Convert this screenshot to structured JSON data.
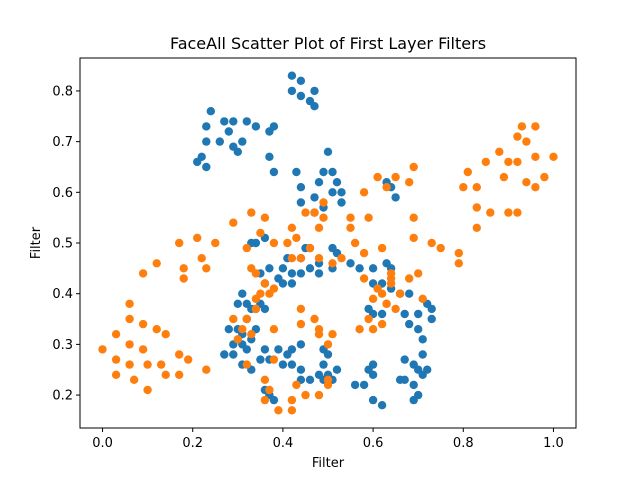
{
  "chart_data": {
    "type": "scatter",
    "title": "FaceAll Scatter Plot of First Layer Filters",
    "xlabel": "Filter",
    "ylabel": "Filter",
    "xlim": [
      -0.05,
      1.05
    ],
    "ylim": [
      0.135,
      0.865
    ],
    "xticks": [
      "0.0",
      "0.2",
      "0.4",
      "0.6",
      "0.8",
      "1.0"
    ],
    "yticks": [
      "0.2",
      "0.3",
      "0.4",
      "0.5",
      "0.6",
      "0.7",
      "0.8"
    ],
    "grid": false,
    "legend": "none",
    "series": [
      {
        "color": "#1f77b4",
        "points": [
          [
            0.42,
            0.83
          ],
          [
            0.44,
            0.82
          ],
          [
            0.47,
            0.8
          ],
          [
            0.42,
            0.8
          ],
          [
            0.44,
            0.79
          ],
          [
            0.46,
            0.78
          ],
          [
            0.47,
            0.77
          ],
          [
            0.24,
            0.76
          ],
          [
            0.27,
            0.74
          ],
          [
            0.29,
            0.74
          ],
          [
            0.32,
            0.74
          ],
          [
            0.34,
            0.73
          ],
          [
            0.23,
            0.73
          ],
          [
            0.38,
            0.73
          ],
          [
            0.37,
            0.72
          ],
          [
            0.28,
            0.72
          ],
          [
            0.23,
            0.7
          ],
          [
            0.26,
            0.7
          ],
          [
            0.31,
            0.7
          ],
          [
            0.29,
            0.69
          ],
          [
            0.3,
            0.68
          ],
          [
            0.5,
            0.68
          ],
          [
            0.21,
            0.66
          ],
          [
            0.22,
            0.67
          ],
          [
            0.23,
            0.65
          ],
          [
            0.37,
            0.67
          ],
          [
            0.38,
            0.64
          ],
          [
            0.43,
            0.64
          ],
          [
            0.49,
            0.64
          ],
          [
            0.51,
            0.64
          ],
          [
            0.52,
            0.62
          ],
          [
            0.48,
            0.62
          ],
          [
            0.51,
            0.6
          ],
          [
            0.53,
            0.6
          ],
          [
            0.44,
            0.61
          ],
          [
            0.47,
            0.59
          ],
          [
            0.44,
            0.58
          ],
          [
            0.53,
            0.58
          ],
          [
            0.49,
            0.57
          ],
          [
            0.47,
            0.56
          ],
          [
            0.63,
            0.62
          ],
          [
            0.64,
            0.61
          ],
          [
            0.65,
            0.59
          ],
          [
            0.33,
            0.5
          ],
          [
            0.34,
            0.5
          ],
          [
            0.36,
            0.51
          ],
          [
            0.45,
            0.49
          ],
          [
            0.46,
            0.49
          ],
          [
            0.51,
            0.49
          ],
          [
            0.52,
            0.48
          ],
          [
            0.44,
            0.47
          ],
          [
            0.41,
            0.47
          ],
          [
            0.48,
            0.46
          ],
          [
            0.46,
            0.45
          ],
          [
            0.51,
            0.45
          ],
          [
            0.55,
            0.46
          ],
          [
            0.57,
            0.45
          ],
          [
            0.6,
            0.45
          ],
          [
            0.63,
            0.46
          ],
          [
            0.64,
            0.45
          ],
          [
            0.37,
            0.45
          ],
          [
            0.35,
            0.44
          ],
          [
            0.4,
            0.45
          ],
          [
            0.42,
            0.44
          ],
          [
            0.44,
            0.44
          ],
          [
            0.48,
            0.44
          ],
          [
            0.39,
            0.43
          ],
          [
            0.36,
            0.42
          ],
          [
            0.4,
            0.42
          ],
          [
            0.42,
            0.42
          ],
          [
            0.6,
            0.42
          ],
          [
            0.62,
            0.42
          ],
          [
            0.64,
            0.41
          ],
          [
            0.66,
            0.4
          ],
          [
            0.68,
            0.4
          ],
          [
            0.72,
            0.38
          ],
          [
            0.73,
            0.37
          ],
          [
            0.67,
            0.36
          ],
          [
            0.7,
            0.36
          ],
          [
            0.73,
            0.35
          ],
          [
            0.62,
            0.36
          ],
          [
            0.59,
            0.37
          ],
          [
            0.6,
            0.36
          ],
          [
            0.31,
            0.4
          ],
          [
            0.3,
            0.38
          ],
          [
            0.32,
            0.38
          ],
          [
            0.33,
            0.37
          ],
          [
            0.34,
            0.37
          ],
          [
            0.35,
            0.38
          ],
          [
            0.36,
            0.37
          ],
          [
            0.32,
            0.35
          ],
          [
            0.3,
            0.33
          ],
          [
            0.28,
            0.33
          ],
          [
            0.34,
            0.33
          ],
          [
            0.31,
            0.32
          ],
          [
            0.33,
            0.31
          ],
          [
            0.31,
            0.3
          ],
          [
            0.32,
            0.29
          ],
          [
            0.29,
            0.3
          ],
          [
            0.36,
            0.29
          ],
          [
            0.39,
            0.29
          ],
          [
            0.42,
            0.29
          ],
          [
            0.44,
            0.3
          ],
          [
            0.41,
            0.28
          ],
          [
            0.4,
            0.26
          ],
          [
            0.37,
            0.27
          ],
          [
            0.35,
            0.27
          ],
          [
            0.29,
            0.28
          ],
          [
            0.27,
            0.28
          ],
          [
            0.31,
            0.26
          ],
          [
            0.33,
            0.25
          ],
          [
            0.42,
            0.26
          ],
          [
            0.44,
            0.25
          ],
          [
            0.49,
            0.29
          ],
          [
            0.5,
            0.28
          ],
          [
            0.49,
            0.26
          ],
          [
            0.52,
            0.25
          ],
          [
            0.5,
            0.24
          ],
          [
            0.48,
            0.24
          ],
          [
            0.44,
            0.23
          ],
          [
            0.46,
            0.23
          ],
          [
            0.49,
            0.23
          ],
          [
            0.51,
            0.23
          ],
          [
            0.36,
            0.21
          ],
          [
            0.37,
            0.2
          ],
          [
            0.38,
            0.19
          ],
          [
            0.56,
            0.22
          ],
          [
            0.58,
            0.22
          ],
          [
            0.59,
            0.25
          ],
          [
            0.6,
            0.26
          ],
          [
            0.6,
            0.24
          ],
          [
            0.6,
            0.19
          ],
          [
            0.62,
            0.18
          ],
          [
            0.66,
            0.23
          ],
          [
            0.67,
            0.27
          ],
          [
            0.69,
            0.26
          ],
          [
            0.7,
            0.25
          ],
          [
            0.71,
            0.28
          ],
          [
            0.71,
            0.24
          ],
          [
            0.71,
            0.31
          ],
          [
            0.7,
            0.33
          ],
          [
            0.68,
            0.34
          ],
          [
            0.67,
            0.23
          ],
          [
            0.69,
            0.22
          ],
          [
            0.69,
            0.19
          ],
          [
            0.7,
            0.2
          ],
          [
            0.72,
            0.25
          ]
        ]
      },
      {
        "color": "#ff7f0e",
        "points": [
          [
            0.0,
            0.29
          ],
          [
            0.03,
            0.32
          ],
          [
            0.03,
            0.27
          ],
          [
            0.03,
            0.24
          ],
          [
            0.06,
            0.3
          ],
          [
            0.06,
            0.26
          ],
          [
            0.07,
            0.23
          ],
          [
            0.06,
            0.38
          ],
          [
            0.06,
            0.35
          ],
          [
            0.09,
            0.34
          ],
          [
            0.09,
            0.29
          ],
          [
            0.1,
            0.26
          ],
          [
            0.1,
            0.21
          ],
          [
            0.12,
            0.33
          ],
          [
            0.13,
            0.26
          ],
          [
            0.14,
            0.24
          ],
          [
            0.14,
            0.32
          ],
          [
            0.17,
            0.28
          ],
          [
            0.17,
            0.24
          ],
          [
            0.19,
            0.27
          ],
          [
            0.23,
            0.25
          ],
          [
            0.09,
            0.44
          ],
          [
            0.12,
            0.46
          ],
          [
            0.17,
            0.5
          ],
          [
            0.18,
            0.45
          ],
          [
            0.18,
            0.43
          ],
          [
            0.21,
            0.51
          ],
          [
            0.22,
            0.47
          ],
          [
            0.23,
            0.45
          ],
          [
            0.25,
            0.5
          ],
          [
            0.29,
            0.54
          ],
          [
            0.32,
            0.49
          ],
          [
            0.33,
            0.56
          ],
          [
            0.33,
            0.45
          ],
          [
            0.34,
            0.44
          ],
          [
            0.36,
            0.42
          ],
          [
            0.35,
            0.52
          ],
          [
            0.36,
            0.55
          ],
          [
            0.38,
            0.5
          ],
          [
            0.41,
            0.5
          ],
          [
            0.42,
            0.47
          ],
          [
            0.43,
            0.51
          ],
          [
            0.42,
            0.53
          ],
          [
            0.44,
            0.47
          ],
          [
            0.46,
            0.49
          ],
          [
            0.48,
            0.47
          ],
          [
            0.51,
            0.46
          ],
          [
            0.48,
            0.53
          ],
          [
            0.45,
            0.56
          ],
          [
            0.47,
            0.56
          ],
          [
            0.49,
            0.58
          ],
          [
            0.49,
            0.55
          ],
          [
            0.53,
            0.47
          ],
          [
            0.29,
            0.35
          ],
          [
            0.31,
            0.33
          ],
          [
            0.32,
            0.35
          ],
          [
            0.34,
            0.37
          ],
          [
            0.34,
            0.39
          ],
          [
            0.35,
            0.4
          ],
          [
            0.37,
            0.4
          ],
          [
            0.38,
            0.41
          ],
          [
            0.3,
            0.31
          ],
          [
            0.33,
            0.32
          ],
          [
            0.38,
            0.33
          ],
          [
            0.38,
            0.27
          ],
          [
            0.32,
            0.26
          ],
          [
            0.36,
            0.23
          ],
          [
            0.37,
            0.21
          ],
          [
            0.36,
            0.19
          ],
          [
            0.39,
            0.17
          ],
          [
            0.42,
            0.17
          ],
          [
            0.42,
            0.19
          ],
          [
            0.43,
            0.22
          ],
          [
            0.45,
            0.2
          ],
          [
            0.48,
            0.2
          ],
          [
            0.5,
            0.22
          ],
          [
            0.5,
            0.23
          ],
          [
            0.44,
            0.37
          ],
          [
            0.44,
            0.34
          ],
          [
            0.47,
            0.35
          ],
          [
            0.48,
            0.33
          ],
          [
            0.48,
            0.32
          ],
          [
            0.51,
            0.32
          ],
          [
            0.5,
            0.3
          ],
          [
            0.55,
            0.53
          ],
          [
            0.56,
            0.5
          ],
          [
            0.55,
            0.55
          ],
          [
            0.58,
            0.6
          ],
          [
            0.59,
            0.55
          ],
          [
            0.61,
            0.63
          ],
          [
            0.63,
            0.61
          ],
          [
            0.65,
            0.63
          ],
          [
            0.68,
            0.62
          ],
          [
            0.69,
            0.65
          ],
          [
            0.62,
            0.49
          ],
          [
            0.58,
            0.48
          ],
          [
            0.58,
            0.43
          ],
          [
            0.61,
            0.41
          ],
          [
            0.6,
            0.39
          ],
          [
            0.62,
            0.4
          ],
          [
            0.63,
            0.38
          ],
          [
            0.64,
            0.42
          ],
          [
            0.64,
            0.43
          ],
          [
            0.64,
            0.44
          ],
          [
            0.66,
            0.4
          ],
          [
            0.68,
            0.43
          ],
          [
            0.7,
            0.44
          ],
          [
            0.71,
            0.39
          ],
          [
            0.69,
            0.55
          ],
          [
            0.69,
            0.51
          ],
          [
            0.73,
            0.5
          ],
          [
            0.75,
            0.49
          ],
          [
            0.57,
            0.33
          ],
          [
            0.59,
            0.35
          ],
          [
            0.6,
            0.33
          ],
          [
            0.62,
            0.34
          ],
          [
            0.63,
            0.38
          ],
          [
            0.65,
            0.37
          ],
          [
            0.79,
            0.48
          ],
          [
            0.79,
            0.46
          ],
          [
            0.8,
            0.61
          ],
          [
            0.81,
            0.64
          ],
          [
            0.83,
            0.61
          ],
          [
            0.83,
            0.53
          ],
          [
            0.83,
            0.57
          ],
          [
            0.85,
            0.66
          ],
          [
            0.86,
            0.56
          ],
          [
            0.88,
            0.68
          ],
          [
            0.89,
            0.63
          ],
          [
            0.9,
            0.66
          ],
          [
            0.9,
            0.56
          ],
          [
            0.92,
            0.71
          ],
          [
            0.92,
            0.56
          ],
          [
            0.92,
            0.66
          ],
          [
            0.93,
            0.73
          ],
          [
            0.94,
            0.62
          ],
          [
            0.94,
            0.7
          ],
          [
            0.96,
            0.73
          ],
          [
            0.96,
            0.61
          ],
          [
            0.96,
            0.67
          ],
          [
            0.98,
            0.63
          ],
          [
            1.0,
            0.67
          ]
        ]
      }
    ]
  }
}
